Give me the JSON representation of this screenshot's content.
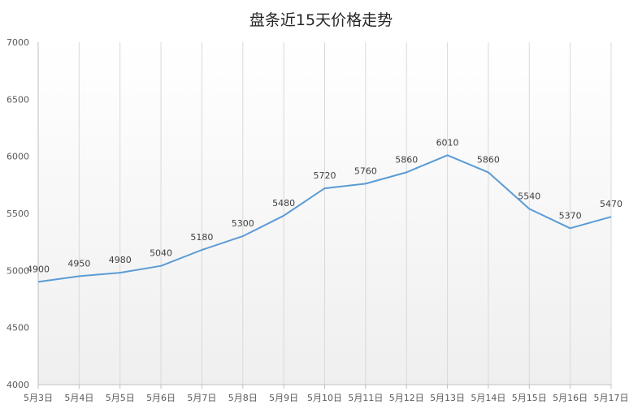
{
  "chart_data": {
    "type": "line",
    "title": "盘条近15天价格走势",
    "categories": [
      "5月3日",
      "5月4日",
      "5月5日",
      "5月6日",
      "5月7日",
      "5月8日",
      "5月9日",
      "5月10日",
      "5月11日",
      "5月12日",
      "5月13日",
      "5月14日",
      "5月15日",
      "5月16日",
      "5月17日"
    ],
    "series": [
      {
        "values": [
          4900,
          4950,
          4980,
          5040,
          5180,
          5300,
          5480,
          5720,
          5760,
          5860,
          6010,
          5860,
          5540,
          5370,
          5470
        ]
      }
    ],
    "ylim": [
      4000,
      7000
    ],
    "yticks": [
      4000,
      4500,
      5000,
      5500,
      6000,
      6500,
      7000
    ],
    "xlabel": "",
    "ylabel": "",
    "grid": "vertical",
    "legend": "none",
    "line_color": "#5b9bd5",
    "background_gradient": [
      "#ffffff",
      "#efefef"
    ]
  }
}
